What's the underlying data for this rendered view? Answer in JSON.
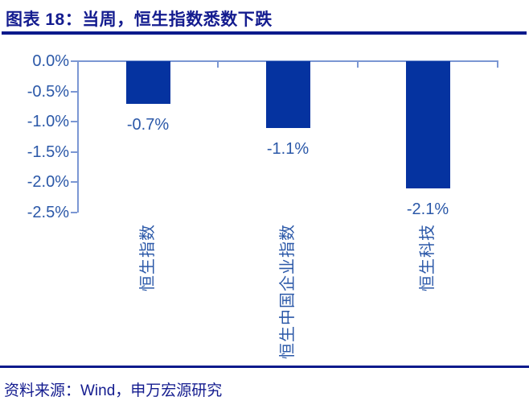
{
  "header": {
    "title": "图表 18：当周，恒生指数悉数下跌"
  },
  "footer": {
    "source_label": "资料来源：Wind，申万宏源研究"
  },
  "colors": {
    "title_navy": "#141c8f",
    "rule_navy": "#0b1a8c",
    "bar_blue": "#0533a0",
    "axis_blue": "#7b97d3",
    "chart_text_blue": "#2b58a8"
  },
  "chart_data": {
    "type": "bar",
    "title": "当周，恒生指数悉数下跌",
    "categories": [
      "恒生指数",
      "恒生中国企业指数",
      "恒生科技"
    ],
    "values": [
      -0.7,
      -1.1,
      -2.1
    ],
    "data_labels": [
      "-0.7%",
      "-1.1%",
      "-2.1%"
    ],
    "data_label_position": "outside-end-below",
    "yticks": [
      "0.0%",
      "-0.5%",
      "-1.0%",
      "-1.5%",
      "-2.0%",
      "-2.5%"
    ],
    "ylim": [
      -2.5,
      0
    ],
    "xlabel": "",
    "ylabel": "",
    "grid": false,
    "legend": "none",
    "bar_color": "#0533a0",
    "category_label_rotation_deg": 90
  }
}
